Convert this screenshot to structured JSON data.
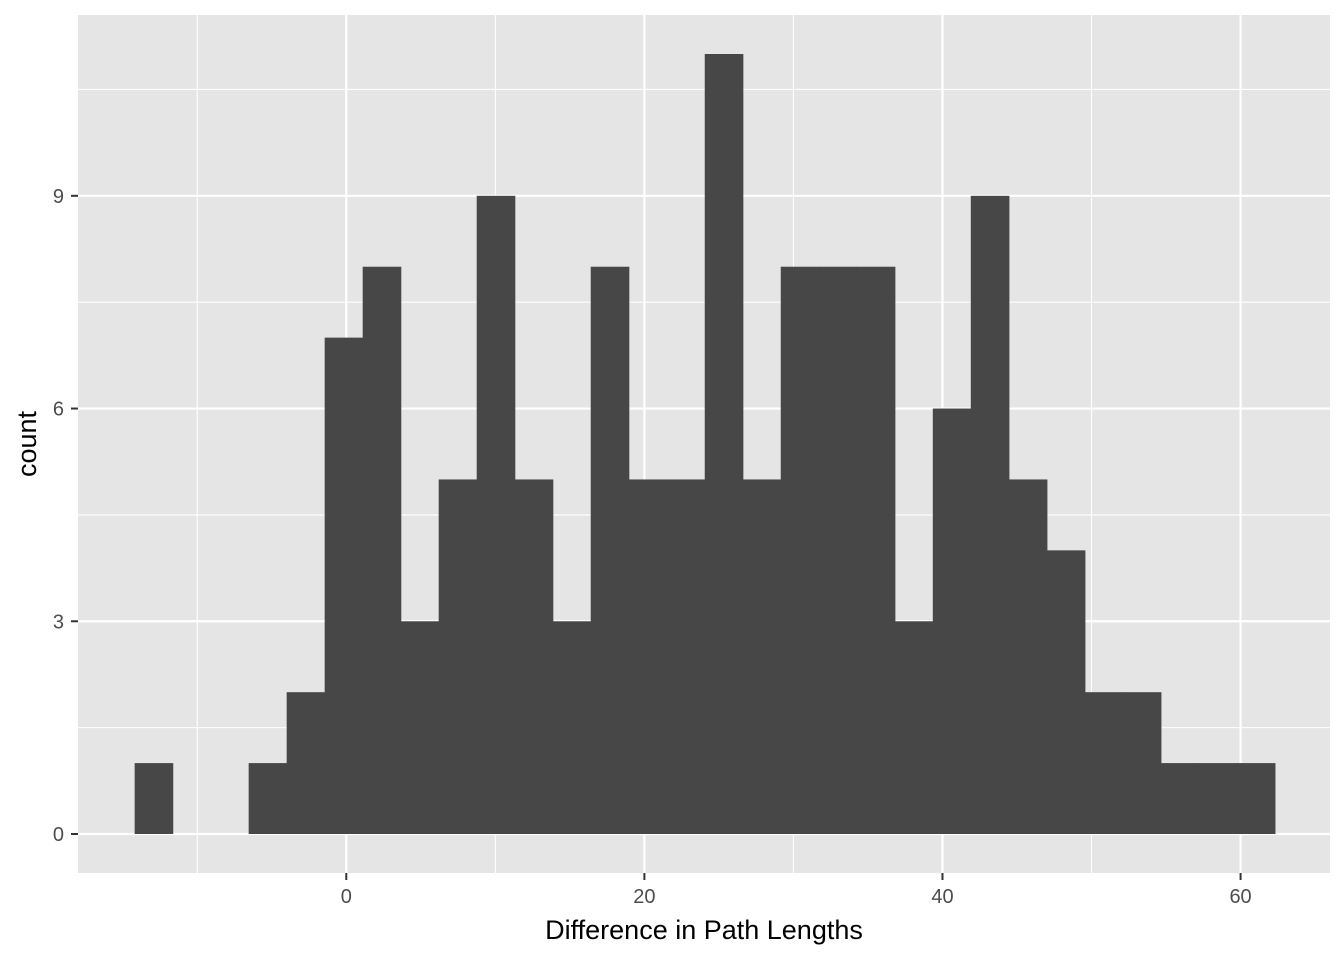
{
  "chart_data": {
    "type": "bar",
    "subtype": "histogram",
    "title": "",
    "xlabel": "Difference in Path Lengths",
    "ylabel": "count",
    "xlim": [
      -18,
      66
    ],
    "ylim": [
      -0.55,
      11.55
    ],
    "x_ticks": [
      0,
      20,
      40,
      60
    ],
    "x_tick_labels": [
      "0",
      "20",
      "40",
      "60"
    ],
    "y_ticks": [
      0,
      3,
      6,
      9
    ],
    "y_tick_labels": [
      "0",
      "3",
      "6",
      "9"
    ],
    "bin_width": 2.55,
    "bins": [
      {
        "x0": -14.2,
        "x1": -11.65,
        "count": 1
      },
      {
        "x0": -11.65,
        "x1": -9.1,
        "count": 0
      },
      {
        "x0": -9.1,
        "x1": -6.55,
        "count": 0
      },
      {
        "x0": -6.55,
        "x1": -4.0,
        "count": 1
      },
      {
        "x0": -4.0,
        "x1": -1.45,
        "count": 2
      },
      {
        "x0": -1.45,
        "x1": 1.1,
        "count": 7
      },
      {
        "x0": 1.1,
        "x1": 3.65,
        "count": 8
      },
      {
        "x0": 3.65,
        "x1": 6.2,
        "count": 3
      },
      {
        "x0": 6.2,
        "x1": 8.75,
        "count": 5
      },
      {
        "x0": 8.75,
        "x1": 11.3,
        "count": 9
      },
      {
        "x0": 11.3,
        "x1": 13.85,
        "count": 5
      },
      {
        "x0": 13.85,
        "x1": 16.4,
        "count": 3
      },
      {
        "x0": 16.4,
        "x1": 18.95,
        "count": 8
      },
      {
        "x0": 18.95,
        "x1": 21.5,
        "count": 5
      },
      {
        "x0": 21.5,
        "x1": 24.05,
        "count": 5
      },
      {
        "x0": 24.05,
        "x1": 26.6,
        "count": 11
      },
      {
        "x0": 26.6,
        "x1": 29.15,
        "count": 5
      },
      {
        "x0": 29.15,
        "x1": 31.7,
        "count": 8
      },
      {
        "x0": 31.7,
        "x1": 34.25,
        "count": 8
      },
      {
        "x0": 34.25,
        "x1": 36.8,
        "count": 8
      },
      {
        "x0": 36.8,
        "x1": 39.35,
        "count": 3
      },
      {
        "x0": 39.35,
        "x1": 41.9,
        "count": 6
      },
      {
        "x0": 41.9,
        "x1": 44.45,
        "count": 9
      },
      {
        "x0": 44.45,
        "x1": 47.0,
        "count": 5
      },
      {
        "x0": 47.0,
        "x1": 49.55,
        "count": 4
      },
      {
        "x0": 49.55,
        "x1": 52.1,
        "count": 2
      },
      {
        "x0": 52.1,
        "x1": 54.65,
        "count": 2
      },
      {
        "x0": 54.65,
        "x1": 57.2,
        "count": 1
      },
      {
        "x0": 57.2,
        "x1": 59.75,
        "count": 1
      },
      {
        "x0": 59.75,
        "x1": 62.3,
        "count": 1
      }
    ],
    "grid": true,
    "panel_background": "#e5e5e5",
    "grid_color": "#ffffff",
    "bar_color": "#474747",
    "legend": "none"
  }
}
